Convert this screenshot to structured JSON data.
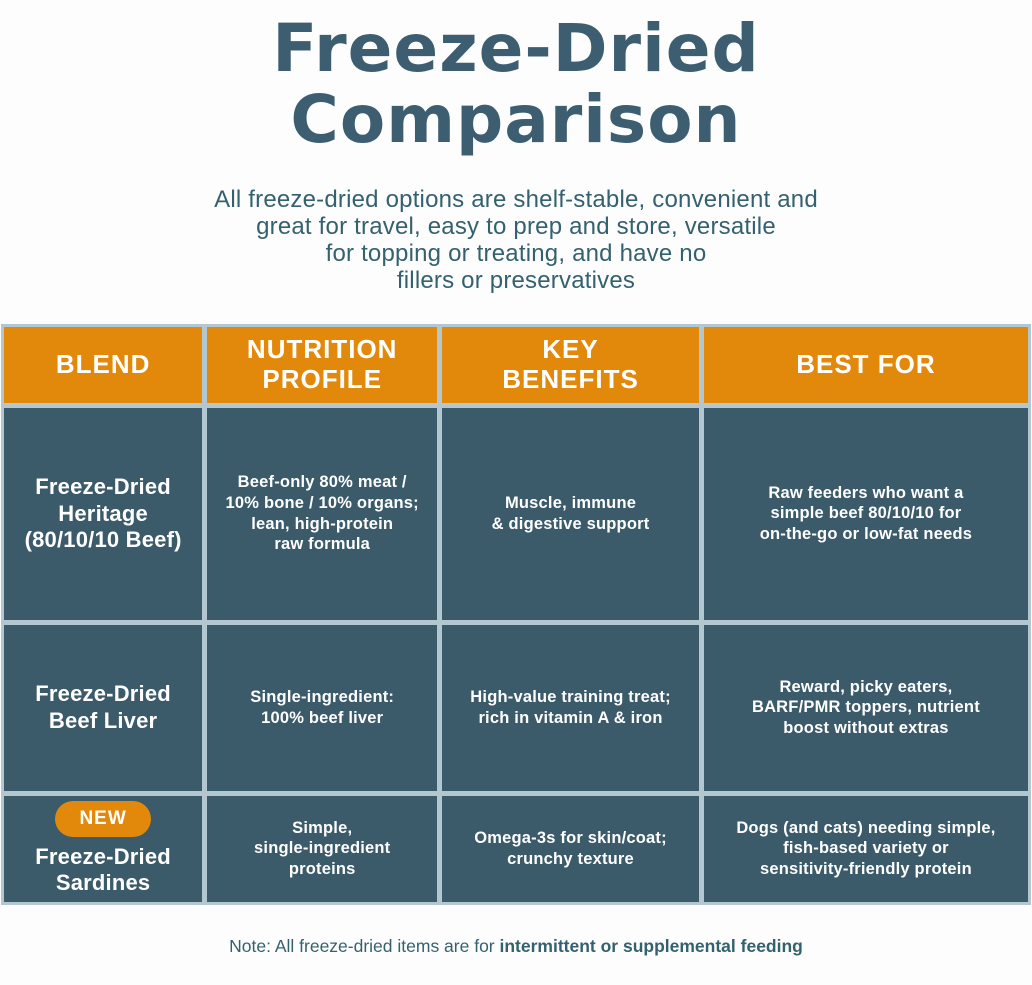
{
  "header": {
    "title": "Freeze-Dried\nComparison",
    "subtitle": "All freeze-dried options are shelf-stable, convenient and\ngreat for travel, easy to prep and store, versatile\nfor topping or treating, and have no\nfillers or preservatives"
  },
  "colors": {
    "accent_orange": "#E2890B",
    "cell_teal": "#3B5A6A",
    "grid_gap_blue": "#B3C7D1",
    "heading_teal": "#3D5E70"
  },
  "chart_data": {
    "type": "table",
    "title": "Freeze-Dried Comparison",
    "columns": [
      "BLEND",
      "NUTRITION\nPROFILE",
      "KEY\nBENEFITS",
      "BEST FOR"
    ],
    "rows": [
      {
        "badge": "",
        "blend": "Freeze-Dried\nHeritage\n(80/10/10 Beef)",
        "nutrition_profile": "Beef-only 80% meat /\n10% bone / 10% organs;\nlean, high-protein\nraw formula",
        "key_benefits": "Muscle, immune\n& digestive support",
        "best_for": "Raw feeders who want a\nsimple beef 80/10/10 for\non-the-go or low-fat needs"
      },
      {
        "badge": "",
        "blend": "Freeze-Dried\nBeef Liver",
        "nutrition_profile": "Single-ingredient:\n100% beef liver",
        "key_benefits": "High-value training treat;\nrich in vitamin A & iron",
        "best_for": "Reward, picky eaters,\nBARF/PMR toppers, nutrient\nboost without extras"
      },
      {
        "badge": "NEW",
        "blend": "Freeze-Dried\nSardines",
        "nutrition_profile": "Simple,\nsingle-ingredient\nproteins",
        "key_benefits": "Omega-3s for skin/coat;\ncrunchy texture",
        "best_for": "Dogs (and cats) needing simple,\nfish-based variety or\nsensitivity-friendly protein"
      }
    ]
  },
  "footer": {
    "note_prefix": "Note: All freeze-dried items are for ",
    "note_bold": "intermittent or supplemental feeding"
  }
}
